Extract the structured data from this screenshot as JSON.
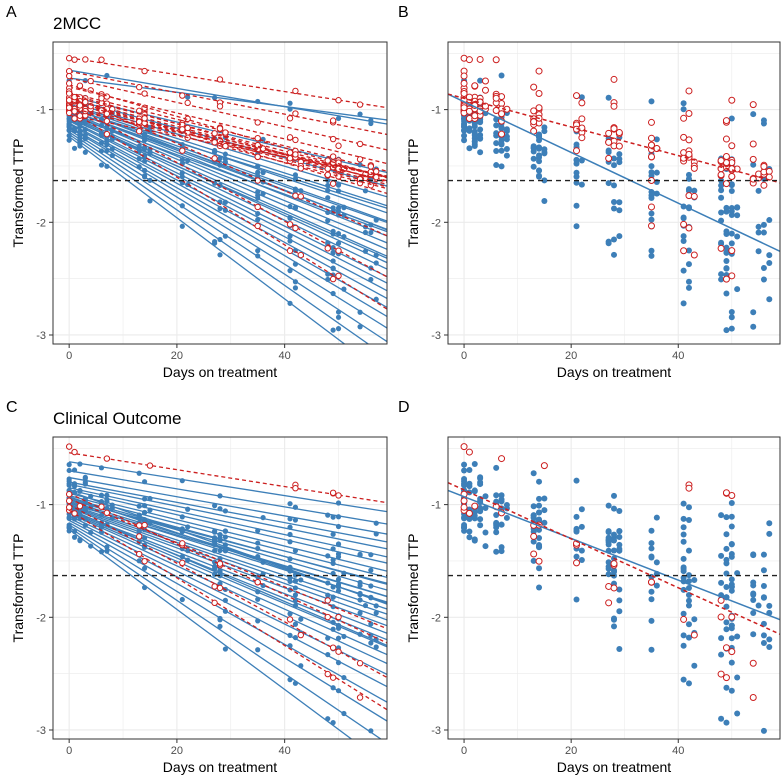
{
  "figure": {
    "colors": {
      "blue": "#3d7fb8",
      "red": "#cc1f1f",
      "threshold": "#222222",
      "grid": "#ebebeb",
      "border": "#333333"
    }
  },
  "chart_data": [
    {
      "panel": "A",
      "title": "2MCC",
      "type": "line",
      "xlabel": "Days on treatment",
      "ylabel": "Transformed TTP",
      "xlim": [
        -3,
        59
      ],
      "ylim": [
        -3.08,
        -0.4
      ],
      "xticks": [
        0,
        20,
        40
      ],
      "yticks": [
        -1,
        -2,
        -3
      ],
      "threshold": -1.63,
      "series_style": "individual"
    },
    {
      "panel": "B",
      "title": "",
      "type": "scatter",
      "xlabel": "Days on treatment",
      "ylabel": "Transformed TTP",
      "xlim": [
        -3,
        59
      ],
      "ylim": [
        -3.08,
        -0.4
      ],
      "xticks": [
        0,
        20,
        40
      ],
      "yticks": [
        -1,
        -2,
        -3
      ],
      "threshold": -1.63,
      "fits": [
        {
          "name": "blue",
          "intercept": -0.93,
          "slope": -0.0225
        },
        {
          "name": "red",
          "intercept": -0.9,
          "slope": -0.0127
        }
      ],
      "series_style": "pooled"
    },
    {
      "panel": "C",
      "title": "Clinical Outcome",
      "type": "line",
      "xlabel": "Days on treatment",
      "ylabel": "Transformed TTP",
      "xlim": [
        -3,
        59
      ],
      "ylim": [
        -3.08,
        -0.4
      ],
      "xticks": [
        0,
        20,
        40
      ],
      "yticks": [
        -1,
        -2,
        -3
      ],
      "threshold": -1.63,
      "series_style": "individual"
    },
    {
      "panel": "D",
      "title": "",
      "type": "scatter",
      "xlabel": "Days on treatment",
      "ylabel": "Transformed TTP",
      "xlim": [
        -3,
        59
      ],
      "ylim": [
        -3.08,
        -0.4
      ],
      "xticks": [
        0,
        20,
        40
      ],
      "yticks": [
        -1,
        -2,
        -3
      ],
      "threshold": -1.63,
      "fits": [
        {
          "name": "blue",
          "intercept": -0.93,
          "slope": -0.0185
        },
        {
          "name": "red",
          "intercept": -0.87,
          "slope": -0.0217
        }
      ],
      "series_style": "pooled"
    }
  ],
  "subjects": {
    "2MCC": {
      "blue": [
        [
          -0.65,
          -0.0081
        ],
        [
          -0.72,
          -0.0063
        ],
        [
          -0.88,
          -0.0115
        ],
        [
          -0.9,
          -0.0132
        ],
        [
          -0.93,
          -0.0143
        ],
        [
          -0.95,
          -0.0153
        ],
        [
          -0.96,
          -0.0162
        ],
        [
          -0.98,
          -0.0171
        ],
        [
          -1.0,
          -0.018
        ],
        [
          -1.0,
          -0.019
        ],
        [
          -1.02,
          -0.0197
        ],
        [
          -1.03,
          -0.0205
        ],
        [
          -1.05,
          -0.0212
        ],
        [
          -1.06,
          -0.022
        ],
        [
          -1.07,
          -0.0228
        ],
        [
          -1.09,
          -0.0236
        ],
        [
          -1.1,
          -0.0244
        ],
        [
          -1.12,
          -0.0252
        ],
        [
          -1.13,
          -0.0262
        ],
        [
          -1.15,
          -0.0272
        ],
        [
          -1.16,
          -0.0284
        ],
        [
          -1.18,
          -0.0298
        ],
        [
          -1.2,
          -0.0315
        ],
        [
          -1.22,
          -0.0335
        ],
        [
          -1.24,
          -0.036
        ],
        [
          -1.05,
          -0.0175
        ],
        [
          -0.99,
          -0.015
        ],
        [
          -1.01,
          -0.0168
        ],
        [
          -0.97,
          -0.0186
        ],
        [
          -1.08,
          -0.021
        ]
      ],
      "red": [
        [
          -0.54,
          -0.0075
        ],
        [
          -0.66,
          -0.0095
        ],
        [
          -0.72,
          -0.0108
        ],
        [
          -0.8,
          -0.0115
        ],
        [
          -0.85,
          -0.0118
        ],
        [
          -0.88,
          -0.0122
        ],
        [
          -0.9,
          -0.0125
        ],
        [
          -0.92,
          -0.0126
        ],
        [
          -0.93,
          -0.0128
        ],
        [
          -0.95,
          -0.011
        ],
        [
          -0.97,
          -0.0112
        ],
        [
          -1.0,
          -0.01
        ],
        [
          -1.05,
          -0.0092
        ],
        [
          -0.78,
          -0.014
        ],
        [
          -0.88,
          -0.021
        ],
        [
          -0.95,
          -0.026
        ],
        [
          -1.0,
          -0.03
        ],
        [
          -0.9,
          -0.0143
        ],
        [
          -0.86,
          -0.0133
        ],
        [
          -0.98,
          -0.0122
        ]
      ]
    },
    "Clinical": {
      "blue": [
        [
          -0.62,
          -0.0075
        ],
        [
          -0.7,
          -0.008
        ],
        [
          -0.76,
          -0.0085
        ],
        [
          -0.8,
          -0.009
        ],
        [
          -0.82,
          -0.0097
        ],
        [
          -0.85,
          -0.0104
        ],
        [
          -0.87,
          -0.011
        ],
        [
          -0.9,
          -0.0117
        ],
        [
          -0.92,
          -0.0123
        ],
        [
          -0.94,
          -0.013
        ],
        [
          -0.95,
          -0.0137
        ],
        [
          -0.97,
          -0.0143
        ],
        [
          -0.98,
          -0.015
        ],
        [
          -1.0,
          -0.0157
        ],
        [
          -1.01,
          -0.0163
        ],
        [
          -1.02,
          -0.017
        ],
        [
          -1.03,
          -0.0177
        ],
        [
          -1.05,
          -0.0185
        ],
        [
          -1.06,
          -0.0193
        ],
        [
          -1.07,
          -0.0202
        ],
        [
          -1.08,
          -0.0212
        ],
        [
          -1.1,
          -0.0222
        ],
        [
          -1.12,
          -0.0235
        ],
        [
          -1.14,
          -0.025
        ],
        [
          -1.16,
          -0.027
        ],
        [
          -1.18,
          -0.0295
        ],
        [
          -1.2,
          -0.0325
        ],
        [
          -1.22,
          -0.0355
        ],
        [
          -0.96,
          -0.0125
        ],
        [
          -0.93,
          -0.016
        ],
        [
          -0.99,
          -0.014
        ],
        [
          -1.04,
          -0.0205
        ],
        [
          -0.88,
          -0.017
        ]
      ],
      "red": [
        [
          -0.54,
          -0.0075
        ],
        [
          -0.9,
          -0.0225
        ],
        [
          -1.0,
          -0.026
        ],
        [
          -1.05,
          -0.03
        ],
        [
          -0.95,
          -0.0195
        ]
      ]
    }
  }
}
